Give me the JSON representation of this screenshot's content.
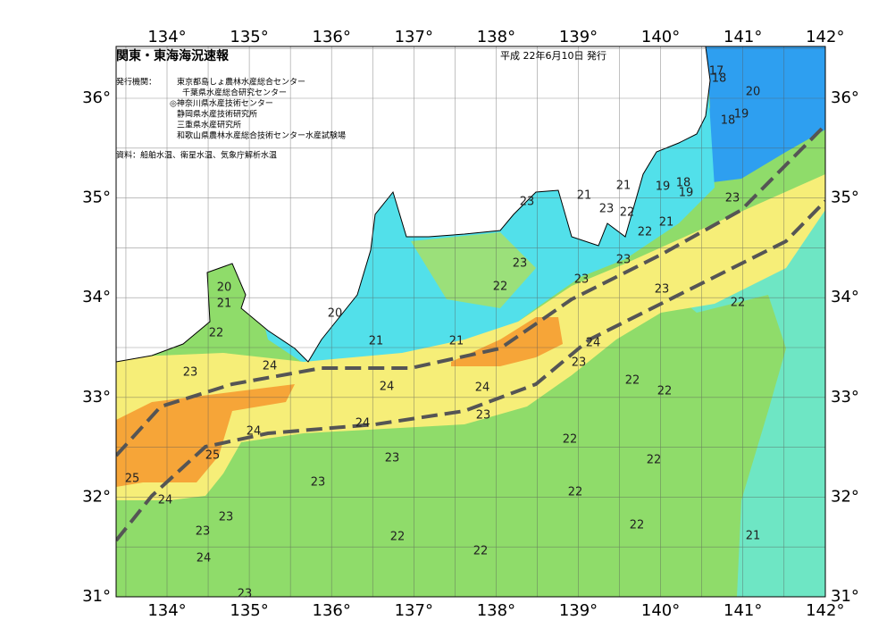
{
  "header": {
    "title": "関東・東海海況速報",
    "date": "平成 22年6月10日 発行"
  },
  "issuers": {
    "label": "発行機関：",
    "lines": [
      "東京都島しょ農林水産総合センター",
      "千葉県水産総合研究センター",
      "◎神奈川県水産技術センター",
      "静岡県水産技術研究所",
      "三重県水産研究所",
      "和歌山県農林水産総合技術センター水産試験場"
    ]
  },
  "source": "資料：船舶水温、衛星水温、気象庁解析水温",
  "lon_labels": [
    "134°",
    "135°",
    "136°",
    "137°",
    "138°",
    "139°",
    "140°",
    "141°",
    "142°"
  ],
  "lat_labels": [
    "36°",
    "35°",
    "34°",
    "33°",
    "32°",
    "31°"
  ],
  "contour_labels": [
    17,
    18,
    20,
    18,
    19,
    21,
    19,
    18,
    19,
    23,
    21,
    23,
    22,
    21,
    22,
    23,
    23,
    23,
    23,
    22,
    23,
    22,
    20,
    21,
    20,
    22,
    21,
    21,
    24,
    23,
    24,
    23,
    22,
    24,
    24,
    22,
    23,
    24,
    24,
    22,
    25,
    23,
    22,
    25,
    23,
    24,
    22,
    23,
    22,
    23,
    22,
    21,
    22,
    24,
    23
  ]
}
